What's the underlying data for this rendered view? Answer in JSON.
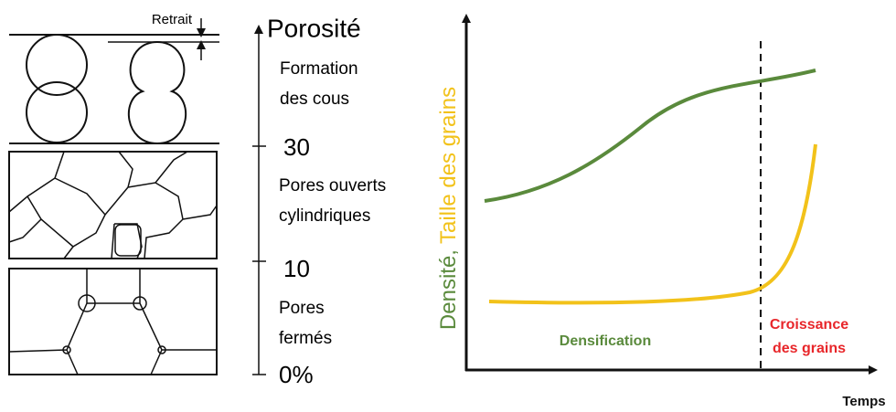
{
  "left_panel": {
    "retrait": "Retrait",
    "axis_title": "Porosité",
    "stages": [
      {
        "lines": [
          "Formation",
          "des cous"
        ]
      },
      {
        "lines": [
          "Pores ouverts",
          "cylindriques"
        ]
      },
      {
        "lines": [
          "Pores",
          "fermés"
        ]
      }
    ],
    "ticks": [
      "30",
      "10",
      "0%"
    ]
  },
  "right_panel": {
    "y_label": {
      "density": "Densité,",
      "grain_size": "Taille des grains"
    },
    "x_label": "Temps",
    "regions": {
      "densification": "Densification",
      "growth": [
        "Croissance",
        "des grains"
      ]
    }
  }
}
